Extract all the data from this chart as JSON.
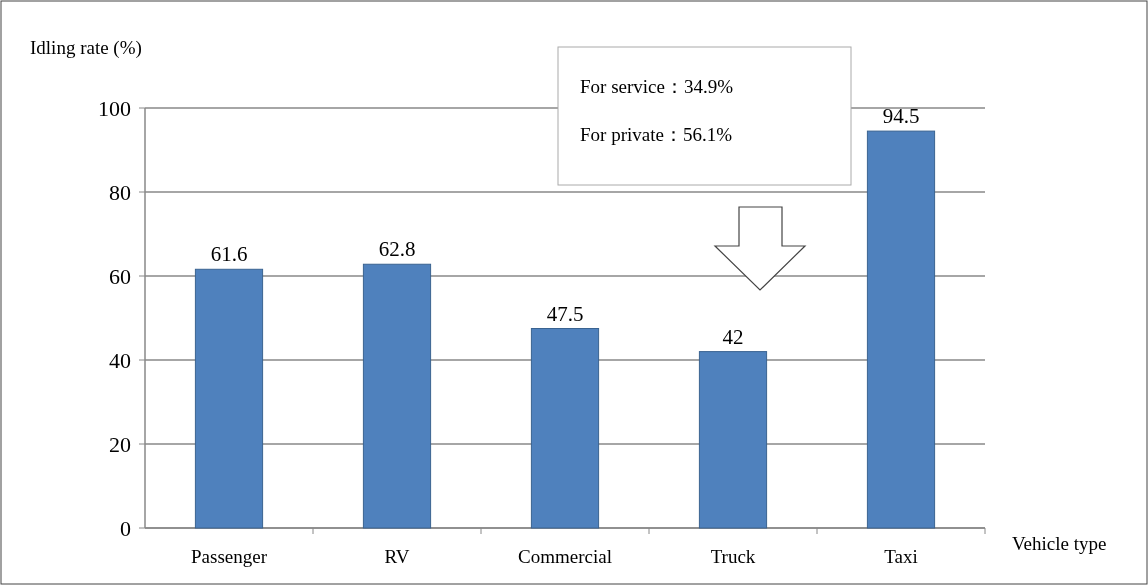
{
  "chart_data": {
    "type": "bar",
    "ylabel": "Idling rate (%)",
    "xlabel": "Vehicle type",
    "categories": [
      "Passenger",
      "RV",
      "Commercial",
      "Truck",
      "Taxi"
    ],
    "values": [
      61.6,
      62.8,
      47.5,
      42,
      94.5
    ],
    "color": "#4f81bd",
    "ylim": [
      0,
      100
    ],
    "yticks": [
      0,
      20,
      40,
      60,
      80,
      100
    ],
    "grid": "y",
    "data_labels": true,
    "annotations": [
      "For service：34.9%",
      "For private：56.1%"
    ]
  }
}
